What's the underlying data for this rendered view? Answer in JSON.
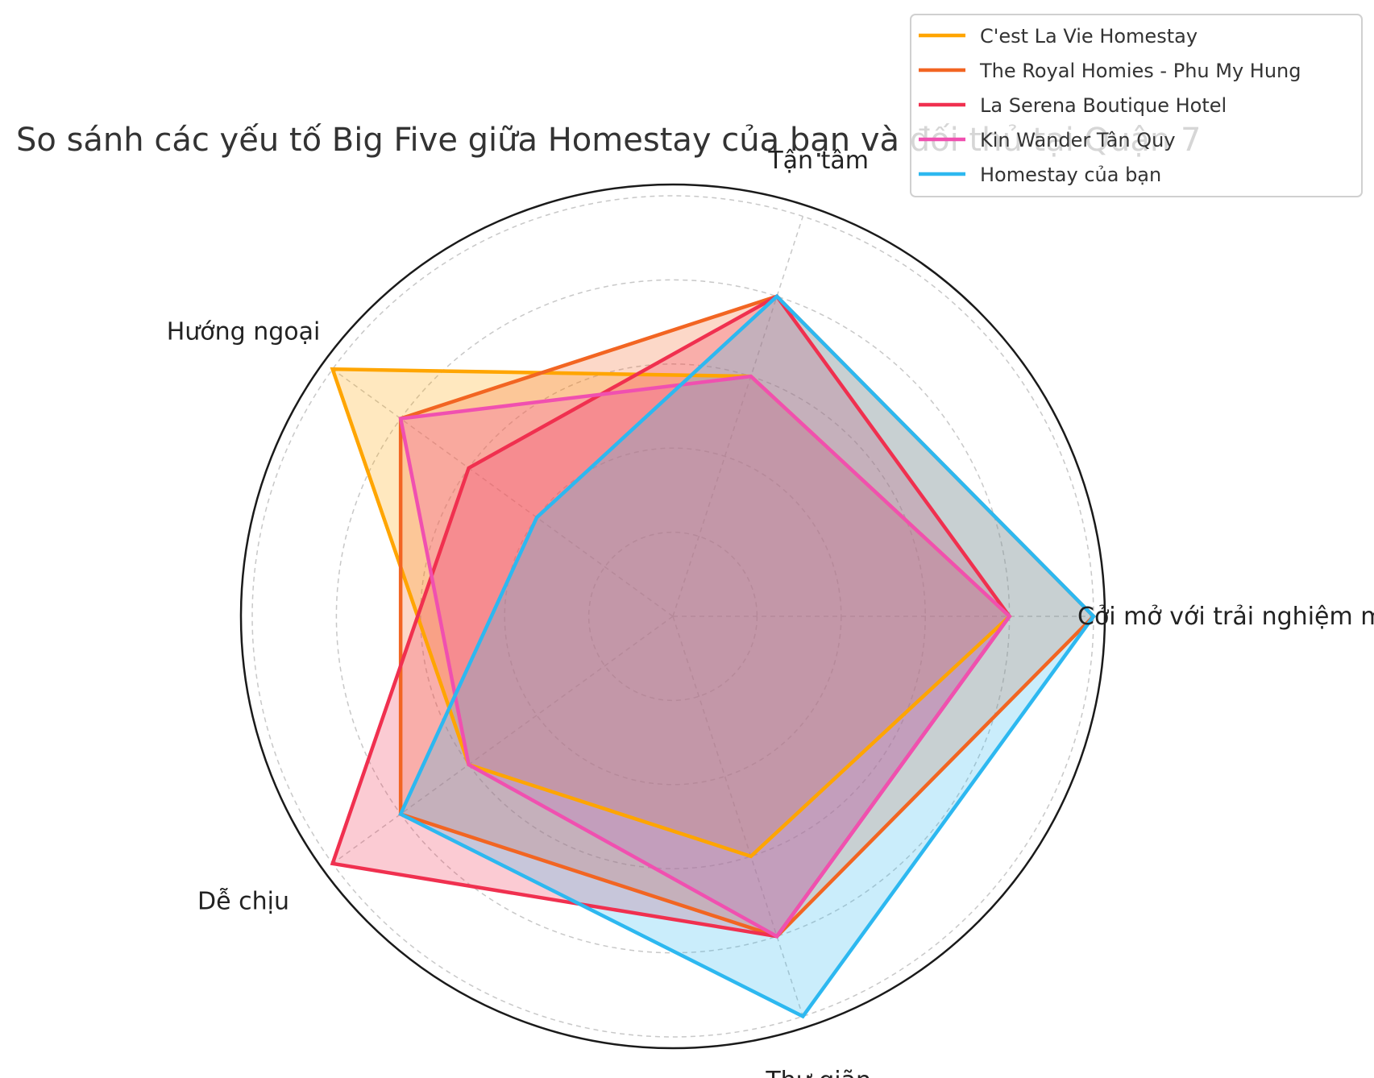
{
  "chart_data": {
    "type": "radar",
    "title": "So sánh các yếu tố Big Five giữa Homestay của bạn và đối thủ tại Quận 7",
    "categories": [
      "Cởi mở với trải nghiệm mới",
      "Tận tâm",
      "Hướng ngoại",
      "Dễ chịu",
      "Thư giãn"
    ],
    "rlim": [
      0,
      10
    ],
    "grid": true,
    "legend_position": "top-right",
    "series": [
      {
        "name": "C'est La Vie Homestay",
        "color": "#FFA500",
        "values": [
          8,
          6,
          10,
          6,
          6
        ]
      },
      {
        "name": "The Royal Homies - Phu My Hung",
        "color": "#F26522",
        "values": [
          10,
          8,
          8,
          8,
          8
        ]
      },
      {
        "name": "La Serena Boutique Hotel",
        "color": "#F0304F",
        "values": [
          8,
          8,
          6,
          10,
          8
        ]
      },
      {
        "name": "Kin Wander Tân Quy",
        "color": "#F050B0",
        "values": [
          8,
          6,
          8,
          6,
          8
        ]
      },
      {
        "name": "Homestay của bạn",
        "color": "#2DB8F0",
        "values": [
          10,
          8,
          4,
          8,
          10
        ]
      }
    ]
  }
}
